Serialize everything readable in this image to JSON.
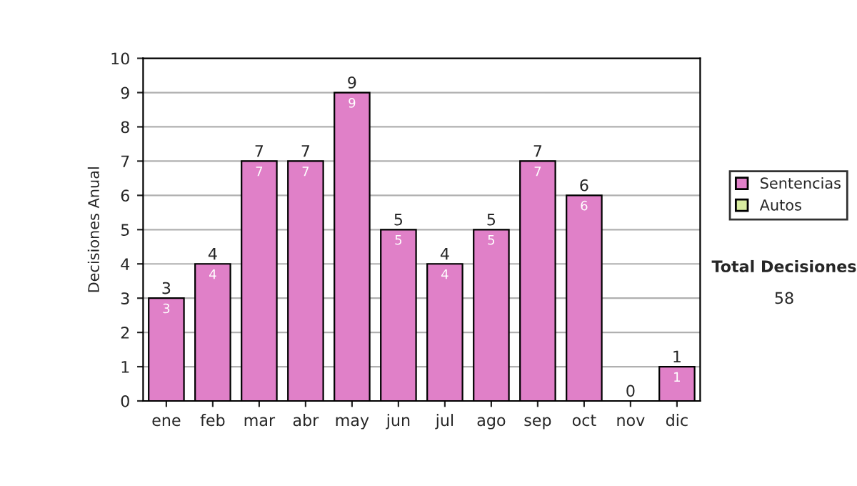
{
  "chart_data": {
    "type": "bar",
    "ylabel": "Decisiones Anual",
    "stacked": true,
    "categories": [
      "ene",
      "feb",
      "mar",
      "abr",
      "may",
      "jun",
      "jul",
      "ago",
      "sep",
      "oct",
      "nov",
      "dic"
    ],
    "series": [
      {
        "name": "Sentencias",
        "color": "#e080c8",
        "values": [
          3,
          4,
          7,
          7,
          9,
          5,
          4,
          5,
          7,
          6,
          0,
          1
        ],
        "value_labels": [
          "3",
          "4",
          "7",
          "7",
          "9",
          "5",
          "4",
          "5",
          "7",
          "6",
          null,
          "1"
        ]
      },
      {
        "name": "Autos",
        "color": "#d8eca0",
        "values": [
          0,
          0,
          0,
          0,
          0,
          0,
          0,
          0,
          0,
          0,
          0,
          0
        ]
      }
    ],
    "totals": [
      "3",
      "4",
      "7",
      "7",
      "9",
      "5",
      "4",
      "5",
      "7",
      "6",
      "0",
      "1"
    ],
    "ylim": [
      0,
      10
    ],
    "yticks": [
      0,
      1,
      2,
      3,
      4,
      5,
      6,
      7,
      8,
      9,
      10
    ],
    "grid": "y",
    "legend": "right",
    "annotations": [
      "Total Decisiones",
      "58"
    ]
  }
}
